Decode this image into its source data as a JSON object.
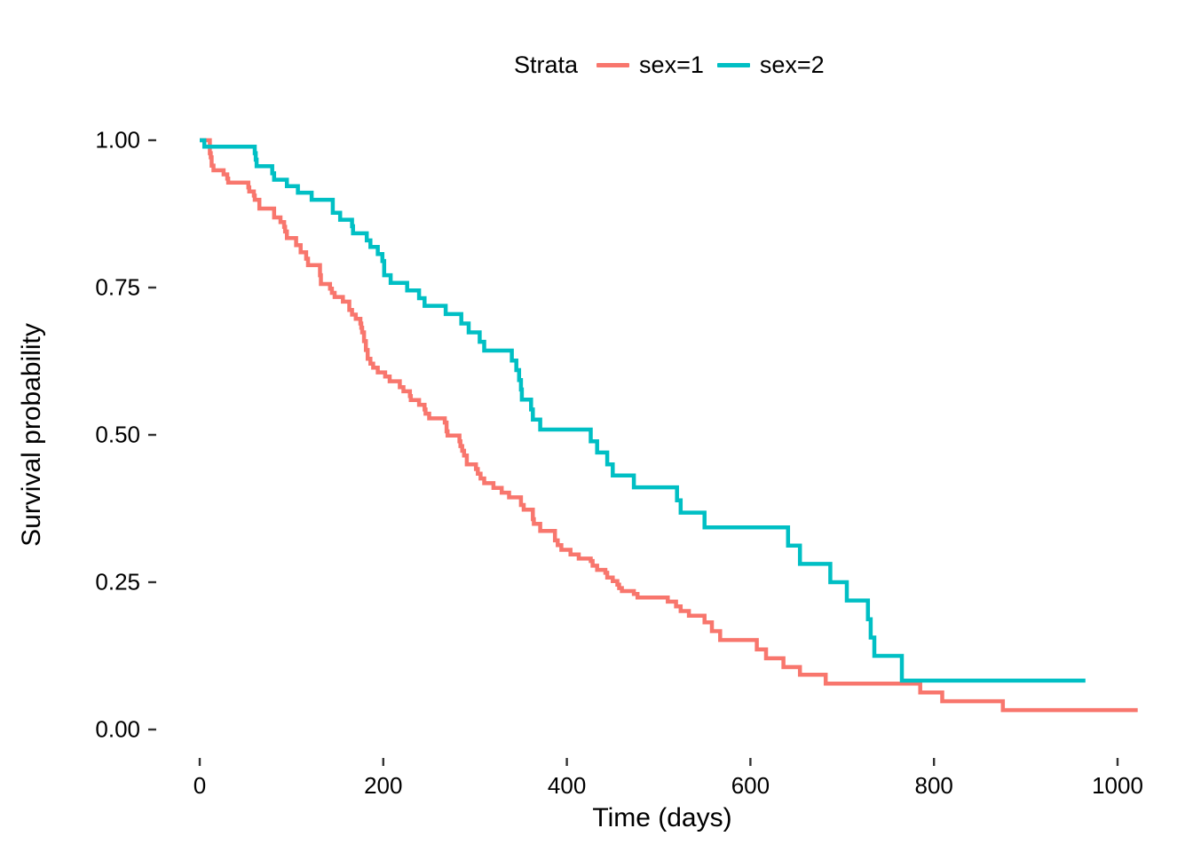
{
  "figure": {
    "background": "#ffffff",
    "text_color": "#000000",
    "tick_color": "#333333"
  },
  "chart_data": {
    "type": "line",
    "subtype": "kaplan-meier-step",
    "title": "",
    "xlabel": "Time (days)",
    "ylabel": "Survival probability",
    "xlim": [
      0,
      1022
    ],
    "ylim": [
      0,
      1
    ],
    "grid": false,
    "legend_title": "Strata",
    "legend_position": "top",
    "x_ticks": [
      0,
      200,
      400,
      600,
      800,
      1000
    ],
    "y_ticks": [
      {
        "label": "1.00",
        "value": 1.0
      },
      {
        "label": "0.75",
        "value": 0.75
      },
      {
        "label": "0.50",
        "value": 0.5
      },
      {
        "label": "0.25",
        "value": 0.25
      },
      {
        "label": "0.00",
        "value": 0.0
      }
    ],
    "series": [
      {
        "name": "sex=1",
        "color": "#F8766D",
        "points": [
          [
            0,
            1.0
          ],
          [
            11,
            0.978
          ],
          [
            12,
            0.971
          ],
          [
            13,
            0.957
          ],
          [
            15,
            0.949
          ],
          [
            26,
            0.942
          ],
          [
            30,
            0.935
          ],
          [
            31,
            0.928
          ],
          [
            53,
            0.92
          ],
          [
            54,
            0.913
          ],
          [
            59,
            0.906
          ],
          [
            60,
            0.899
          ],
          [
            65,
            0.884
          ],
          [
            81,
            0.869
          ],
          [
            88,
            0.861
          ],
          [
            92,
            0.853
          ],
          [
            93,
            0.845
          ],
          [
            95,
            0.834
          ],
          [
            105,
            0.822
          ],
          [
            110,
            0.81
          ],
          [
            116,
            0.799
          ],
          [
            118,
            0.788
          ],
          [
            131,
            0.771
          ],
          [
            132,
            0.756
          ],
          [
            142,
            0.748
          ],
          [
            144,
            0.741
          ],
          [
            147,
            0.734
          ],
          [
            156,
            0.726
          ],
          [
            163,
            0.712
          ],
          [
            166,
            0.704
          ],
          [
            170,
            0.697
          ],
          [
            175,
            0.689
          ],
          [
            176,
            0.682
          ],
          [
            177,
            0.674
          ],
          [
            179,
            0.659
          ],
          [
            181,
            0.644
          ],
          [
            183,
            0.629
          ],
          [
            186,
            0.621
          ],
          [
            189,
            0.614
          ],
          [
            194,
            0.606
          ],
          [
            202,
            0.599
          ],
          [
            207,
            0.591
          ],
          [
            218,
            0.581
          ],
          [
            222,
            0.574
          ],
          [
            229,
            0.566
          ],
          [
            230,
            0.559
          ],
          [
            239,
            0.551
          ],
          [
            245,
            0.543
          ],
          [
            246,
            0.536
          ],
          [
            250,
            0.528
          ],
          [
            267,
            0.521
          ],
          [
            269,
            0.506
          ],
          [
            270,
            0.499
          ],
          [
            283,
            0.489
          ],
          [
            284,
            0.481
          ],
          [
            286,
            0.473
          ],
          [
            288,
            0.465
          ],
          [
            291,
            0.45
          ],
          [
            301,
            0.442
          ],
          [
            303,
            0.434
          ],
          [
            306,
            0.426
          ],
          [
            310,
            0.418
          ],
          [
            320,
            0.41
          ],
          [
            329,
            0.402
          ],
          [
            337,
            0.394
          ],
          [
            350,
            0.381
          ],
          [
            353,
            0.373
          ],
          [
            363,
            0.357
          ],
          [
            364,
            0.349
          ],
          [
            371,
            0.337
          ],
          [
            387,
            0.321
          ],
          [
            390,
            0.313
          ],
          [
            394,
            0.305
          ],
          [
            404,
            0.297
          ],
          [
            413,
            0.29
          ],
          [
            426,
            0.286
          ],
          [
            428,
            0.278
          ],
          [
            433,
            0.271
          ],
          [
            442,
            0.266
          ],
          [
            444,
            0.258
          ],
          [
            450,
            0.252
          ],
          [
            455,
            0.246
          ],
          [
            457,
            0.24
          ],
          [
            460,
            0.235
          ],
          [
            473,
            0.23
          ],
          [
            477,
            0.224
          ],
          [
            510,
            0.217
          ],
          [
            519,
            0.209
          ],
          [
            524,
            0.201
          ],
          [
            533,
            0.193
          ],
          [
            550,
            0.182
          ],
          [
            558,
            0.167
          ],
          [
            567,
            0.152
          ],
          [
            607,
            0.136
          ],
          [
            617,
            0.121
          ],
          [
            636,
            0.106
          ],
          [
            654,
            0.093
          ],
          [
            682,
            0.078
          ],
          [
            785,
            0.063
          ],
          [
            809,
            0.048
          ],
          [
            875,
            0.033
          ],
          [
            1022,
            0.033
          ]
        ]
      },
      {
        "name": "sex=2",
        "color": "#00BFC4",
        "points": [
          [
            0,
            1.0
          ],
          [
            5,
            0.989
          ],
          [
            60,
            0.978
          ],
          [
            61,
            0.967
          ],
          [
            62,
            0.956
          ],
          [
            79,
            0.944
          ],
          [
            81,
            0.933
          ],
          [
            95,
            0.922
          ],
          [
            107,
            0.911
          ],
          [
            122,
            0.899
          ],
          [
            145,
            0.877
          ],
          [
            153,
            0.865
          ],
          [
            166,
            0.854
          ],
          [
            167,
            0.842
          ],
          [
            182,
            0.83
          ],
          [
            186,
            0.819
          ],
          [
            194,
            0.807
          ],
          [
            199,
            0.795
          ],
          [
            201,
            0.771
          ],
          [
            208,
            0.758
          ],
          [
            226,
            0.745
          ],
          [
            239,
            0.732
          ],
          [
            245,
            0.719
          ],
          [
            268,
            0.705
          ],
          [
            285,
            0.689
          ],
          [
            293,
            0.674
          ],
          [
            305,
            0.658
          ],
          [
            310,
            0.643
          ],
          [
            340,
            0.626
          ],
          [
            345,
            0.61
          ],
          [
            348,
            0.593
          ],
          [
            350,
            0.577
          ],
          [
            351,
            0.56
          ],
          [
            361,
            0.543
          ],
          [
            363,
            0.526
          ],
          [
            371,
            0.509
          ],
          [
            426,
            0.489
          ],
          [
            433,
            0.47
          ],
          [
            444,
            0.45
          ],
          [
            450,
            0.431
          ],
          [
            473,
            0.411
          ],
          [
            520,
            0.389
          ],
          [
            524,
            0.368
          ],
          [
            550,
            0.343
          ],
          [
            641,
            0.312
          ],
          [
            654,
            0.281
          ],
          [
            687,
            0.25
          ],
          [
            705,
            0.219
          ],
          [
            728,
            0.187
          ],
          [
            731,
            0.156
          ],
          [
            735,
            0.125
          ],
          [
            765,
            0.083
          ],
          [
            965,
            0.083
          ]
        ]
      }
    ]
  }
}
